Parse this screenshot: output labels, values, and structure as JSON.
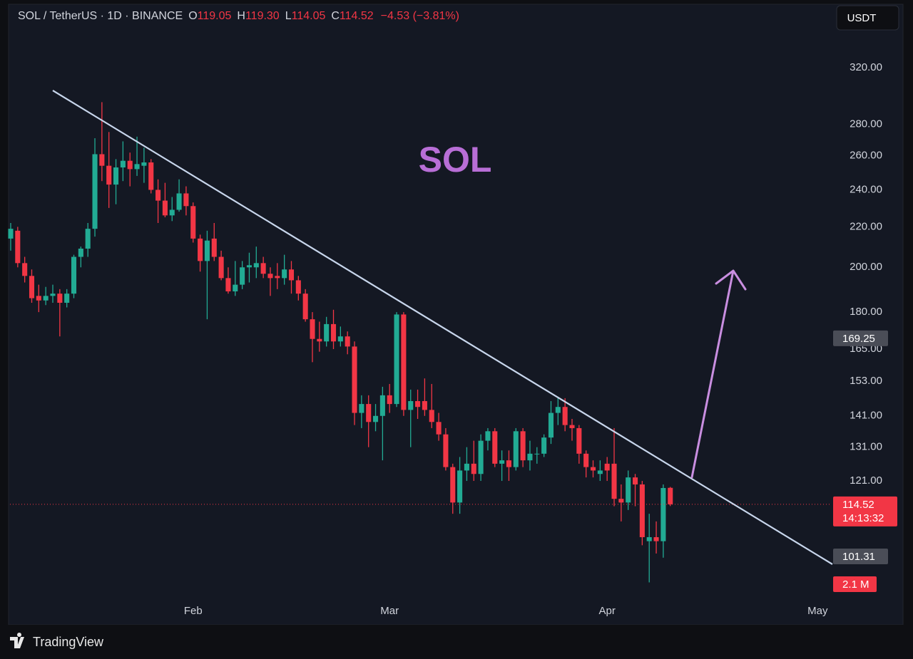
{
  "header": {
    "symbol": "SOL / TetherUS · 1D · BINANCE",
    "ohlc": [
      {
        "key": "O",
        "value": "119.05"
      },
      {
        "key": "H",
        "value": "119.30"
      },
      {
        "key": "L",
        "value": "114.05"
      },
      {
        "key": "C",
        "value": "114.52"
      }
    ],
    "change": "−4.53 (−3.81%)",
    "currency": "USDT"
  },
  "brand": "TradingView",
  "chart_data": {
    "type": "candlestick",
    "annotation": "SOL",
    "up_color": "#22ab94",
    "down_color": "#f23645",
    "open": [
      214,
      218,
      202,
      196,
      187,
      185,
      187,
      188,
      184,
      188,
      205,
      209,
      219,
      261,
      254,
      243,
      253,
      257,
      252,
      254,
      256,
      240,
      234,
      226,
      229,
      238,
      231,
      214,
      203,
      214,
      205,
      195,
      189,
      192,
      200,
      200,
      202,
      197,
      196,
      195,
      199,
      194,
      188,
      177,
      169,
      168,
      175,
      168,
      170,
      166,
      142,
      145,
      139,
      141,
      148,
      145,
      179,
      143,
      146,
      146,
      143,
      139,
      135,
      125,
      115,
      124,
      126,
      123,
      133,
      136,
      126,
      127,
      125,
      136,
      127,
      129,
      129,
      134,
      142,
      144,
      138,
      137,
      129,
      125,
      123,
      126,
      126,
      116,
      115,
      122,
      120,
      105,
      106,
      105,
      119.05
    ],
    "high": [
      222,
      220,
      205,
      199,
      192,
      191,
      192,
      190,
      190,
      206,
      210,
      222,
      271,
      295,
      275,
      258,
      269,
      262,
      272,
      265,
      258,
      246,
      244,
      236,
      246,
      242,
      233,
      216,
      218,
      222,
      208,
      200,
      203,
      203,
      207,
      210,
      205,
      200,
      202,
      206,
      203,
      196,
      190,
      180,
      176,
      178,
      181,
      174,
      172,
      168,
      148,
      148,
      145,
      151,
      152,
      180,
      180,
      150,
      150,
      154,
      152,
      142,
      137,
      126,
      128,
      131,
      133,
      135,
      137,
      137,
      130,
      130,
      137,
      137,
      133,
      131,
      135,
      146,
      147,
      147,
      140,
      138,
      130,
      127,
      127,
      128,
      137,
      120,
      124,
      123,
      121,
      112,
      110,
      120,
      119.3
    ],
    "low": [
      208,
      200,
      193,
      184,
      180,
      183,
      184,
      170,
      182,
      186,
      200,
      205,
      215,
      245,
      230,
      232,
      245,
      242,
      248,
      244,
      238,
      222,
      225,
      223,
      228,
      226,
      212,
      198,
      177,
      203,
      194,
      188,
      187,
      190,
      193,
      195,
      195,
      187,
      190,
      192,
      188,
      185,
      176,
      160,
      164,
      166,
      165,
      166,
      163,
      138,
      137,
      131,
      136,
      127,
      142,
      144,
      141,
      131,
      140,
      141,
      137,
      133,
      124,
      112,
      112,
      121,
      121,
      121,
      130,
      125,
      121,
      121,
      124,
      125,
      124,
      126,
      128,
      132,
      138,
      136,
      133,
      126,
      122,
      122,
      121,
      121,
      114,
      110,
      113,
      114,
      104,
      95.3,
      102,
      101,
      114.05
    ],
    "close": [
      219,
      202,
      196,
      186,
      185,
      187,
      188,
      184,
      188,
      205,
      209,
      219,
      261,
      254,
      243,
      253,
      257,
      252,
      255,
      256,
      240,
      234,
      226,
      229,
      238,
      231,
      214,
      203,
      213,
      205,
      195,
      189,
      192,
      200,
      201,
      202,
      197,
      195,
      195,
      199,
      194,
      188,
      177,
      169,
      168,
      175,
      168,
      170,
      166,
      142,
      145,
      139,
      141,
      148,
      145,
      179,
      143,
      146,
      144,
      143,
      139,
      135,
      125,
      115,
      124,
      126,
      123,
      133,
      136,
      126,
      127,
      125,
      136,
      127,
      129,
      129,
      134,
      142,
      144,
      138,
      137,
      129,
      125,
      124,
      124,
      124,
      116,
      115,
      122,
      120,
      106,
      106,
      105,
      119,
      114.52
    ],
    "xlim": [
      -0.1,
      116.9
    ],
    "xticks": [
      {
        "value": 26,
        "label": "Feb"
      },
      {
        "value": 54,
        "label": "Mar"
      },
      {
        "value": 85,
        "label": "Apr"
      },
      {
        "value": 115,
        "label": "May"
      }
    ],
    "ylim": [
      91,
      345
    ],
    "log_scale": true,
    "yticks": [
      {
        "value": 320,
        "label": "320.00"
      },
      {
        "value": 280,
        "label": "280.00"
      },
      {
        "value": 260,
        "label": "260.00"
      },
      {
        "value": 240,
        "label": "240.00"
      },
      {
        "value": 220,
        "label": "220.00"
      },
      {
        "value": 200,
        "label": "200.00"
      },
      {
        "value": 180,
        "label": "180.00"
      },
      {
        "value": 165,
        "label": "165.00"
      },
      {
        "value": 153,
        "label": "153.00"
      },
      {
        "value": 141,
        "label": "141.00"
      },
      {
        "value": 131,
        "label": "131.00"
      },
      {
        "value": 121,
        "label": "121.00"
      }
    ],
    "grid": false,
    "price_markers": [
      169.25,
      101.31
    ],
    "countdown": "14:13:32",
    "volume_label": "2.1 M"
  }
}
